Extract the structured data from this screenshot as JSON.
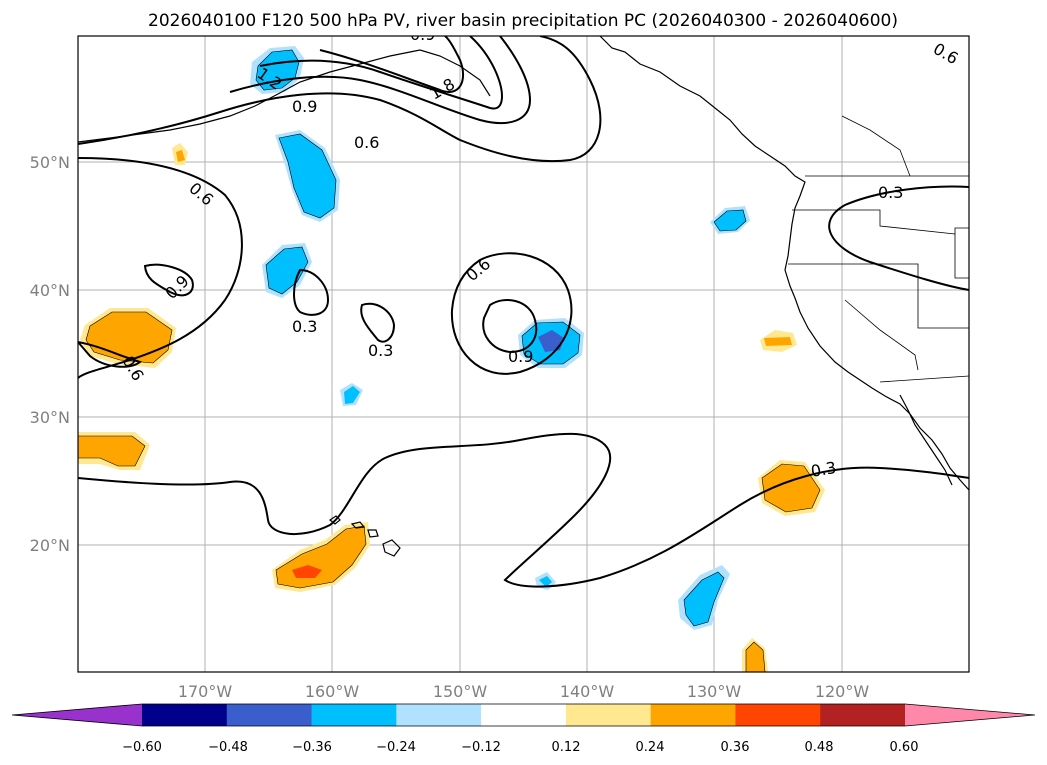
{
  "title": "2026040100 F120 500 hPa PV, river basin precipitation PC (2026040300 - 2026040600)",
  "lat_labels": [
    "50°N",
    "40°N",
    "30°N",
    "20°N"
  ],
  "lon_labels": [
    "170°W",
    "160°W",
    "150°W",
    "140°W",
    "130°W",
    "120°W"
  ],
  "contour_labels": [
    "1.2",
    "0.9",
    "1.8",
    "0.9",
    "0.6",
    "0.6",
    "0.6",
    "0.9",
    "0.6",
    "0.3",
    "0.3",
    "0.6",
    "0.9",
    "0.3",
    "0.3",
    "0.6"
  ],
  "colorbar": {
    "ticks": [
      "−0.60",
      "−0.48",
      "−0.36",
      "−0.24",
      "−0.12",
      "0.12",
      "0.24",
      "0.36",
      "0.48",
      "0.60"
    ],
    "colors": [
      "#9932cc",
      "#00008b",
      "#3a5fcd",
      "#00bfff",
      "#b0e2ff",
      "#ffffff",
      "#ffe88f",
      "#ffa500",
      "#ff4500",
      "#b22222",
      "#ff88aa"
    ]
  }
}
